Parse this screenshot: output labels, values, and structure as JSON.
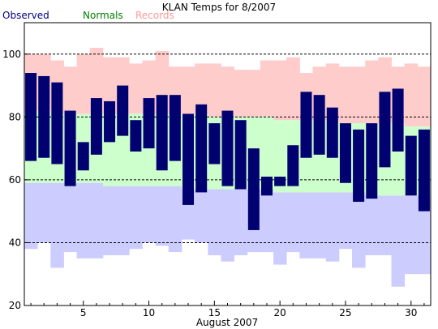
{
  "chart_data": {
    "type": "bar",
    "title": "KLAN Temps for 8/2007",
    "xlabel": "August 2007",
    "ylabel": "",
    "ylim": [
      20,
      110
    ],
    "xlim": [
      0.5,
      31.5
    ],
    "y_ticks": [
      20,
      40,
      60,
      80,
      100
    ],
    "x_ticks": [
      5,
      10,
      15,
      20,
      25,
      30
    ],
    "dashed_gridlines": [
      40,
      60,
      80,
      100
    ],
    "legend": [
      "Observed",
      "Normals",
      "Records"
    ],
    "colors": {
      "observed": "#000070",
      "normals_fill": "#ccffcc",
      "records_high_fill": "#ffcccc",
      "records_low_fill": "#ccccff",
      "legend_observed": "#000080",
      "legend_normals": "#008000",
      "legend_records": "#ff9999"
    },
    "days": [
      1,
      2,
      3,
      4,
      5,
      6,
      7,
      8,
      9,
      10,
      11,
      12,
      13,
      14,
      15,
      16,
      17,
      18,
      19,
      20,
      21,
      22,
      23,
      24,
      25,
      26,
      27,
      28,
      29,
      30,
      31
    ],
    "series": [
      {
        "name": "Observed",
        "role": "observed_high",
        "values": [
          94,
          93,
          91,
          82,
          72,
          86,
          85,
          90,
          79,
          86,
          87,
          87,
          81,
          84,
          78,
          82,
          79,
          70,
          61,
          61,
          71,
          88,
          87,
          83,
          78,
          76,
          78,
          88,
          89,
          74,
          76
        ]
      },
      {
        "name": "Observed",
        "role": "observed_low",
        "values": [
          66,
          67,
          65,
          58,
          63,
          68,
          72,
          74,
          69,
          70,
          63,
          66,
          52,
          56,
          65,
          58,
          57,
          44,
          55,
          58,
          58,
          67,
          68,
          67,
          59,
          53,
          54,
          64,
          69,
          55,
          50
        ]
      },
      {
        "name": "Normals",
        "role": "normal_high",
        "values": [
          82,
          82,
          81,
          81,
          81,
          81,
          81,
          81,
          81,
          81,
          81,
          81,
          81,
          81,
          80,
          80,
          80,
          80,
          80,
          79,
          79,
          79,
          79,
          79,
          78,
          78,
          78,
          78,
          78,
          77,
          77
        ]
      },
      {
        "name": "Normals",
        "role": "normal_low",
        "values": [
          59,
          59,
          59,
          59,
          59,
          59,
          58,
          58,
          58,
          58,
          58,
          58,
          57,
          57,
          57,
          57,
          57,
          57,
          57,
          56,
          56,
          56,
          56,
          56,
          56,
          56,
          55,
          55,
          55,
          55,
          55
        ]
      },
      {
        "name": "Records",
        "role": "record_high",
        "values": [
          100,
          100,
          98,
          96,
          100,
          102,
          99,
          99,
          97,
          98,
          101,
          96,
          96,
          97,
          97,
          96,
          95,
          95,
          98,
          98,
          99,
          94,
          96,
          97,
          96,
          96,
          98,
          99,
          96,
          97,
          96
        ]
      },
      {
        "name": "Records",
        "role": "record_low",
        "values": [
          38,
          40,
          32,
          37,
          35,
          35,
          36,
          36,
          38,
          40,
          39,
          37,
          41,
          40,
          36,
          34,
          36,
          37,
          37,
          33,
          37,
          35,
          35,
          34,
          38,
          32,
          36,
          36,
          26,
          30,
          30
        ]
      }
    ]
  }
}
